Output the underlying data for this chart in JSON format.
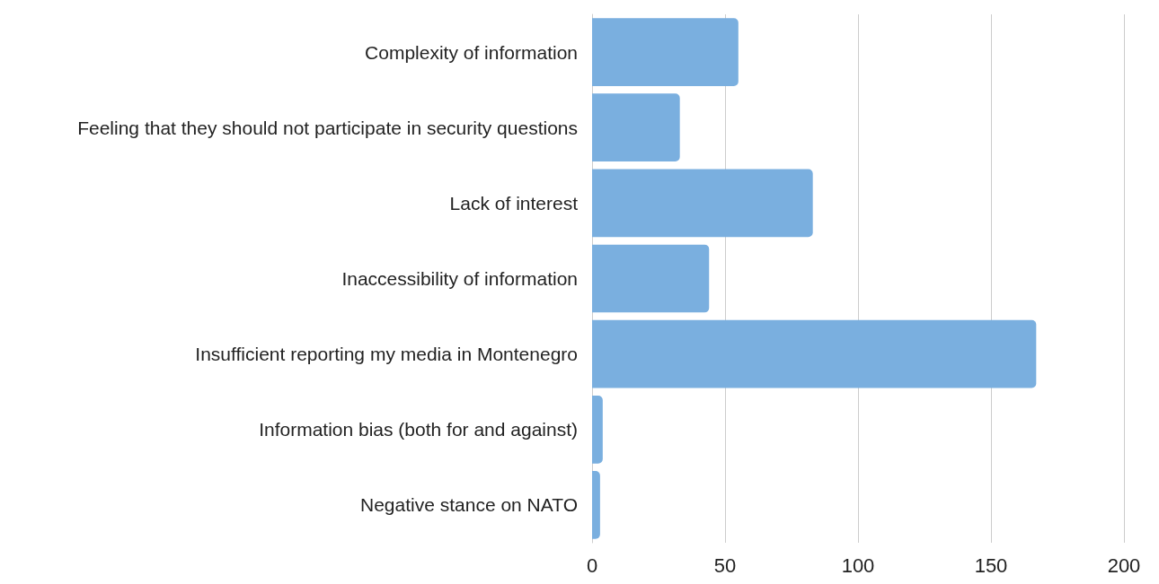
{
  "chart_data": {
    "type": "bar",
    "orientation": "horizontal",
    "categories": [
      "Complexity of information",
      "Feeling that they should not participate in security questions",
      "Lack of interest",
      "Inaccessibility of information",
      "Insufficient reporting my media in Montenegro",
      "Information bias (both for and against)",
      "Negative stance on NATO"
    ],
    "values": [
      55,
      33,
      83,
      44,
      167,
      4,
      3
    ],
    "color": "#7aafdf",
    "xlim": [
      0,
      200
    ],
    "xticks": [
      0,
      50,
      100,
      150,
      200
    ],
    "grid": "x"
  }
}
